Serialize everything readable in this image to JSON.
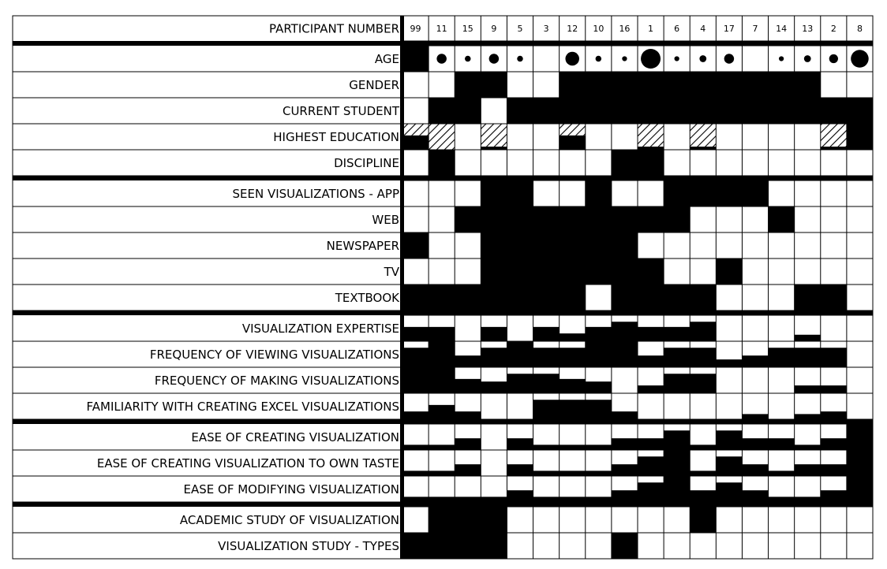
{
  "chart_data": {
    "type": "heatmap",
    "title": "",
    "participants": [
      "99",
      "11",
      "15",
      "9",
      "5",
      "3",
      "12",
      "10",
      "16",
      "1",
      "6",
      "4",
      "17",
      "7",
      "14",
      "13",
      "2",
      "8"
    ],
    "header_label": "PARTICIPANT NUMBER",
    "groups": [
      {
        "rows": [
          {
            "label": "AGE",
            "kind": "circle",
            "values": [
              -1,
              3,
              1,
              3,
              1,
              0,
              5,
              1,
              0.5,
              8,
              0.5,
              1.5,
              3,
              0,
              0.5,
              1.5,
              2.5,
              7
            ]
          },
          {
            "label": "GENDER",
            "kind": "binary",
            "values": [
              0,
              0,
              1,
              1,
              0,
              0,
              1,
              1,
              1,
              1,
              1,
              1,
              1,
              1,
              1,
              1,
              0,
              0
            ]
          },
          {
            "label": "CURRENT STUDENT",
            "kind": "binary",
            "values": [
              0,
              1,
              1,
              0,
              1,
              1,
              1,
              1,
              1,
              1,
              1,
              1,
              1,
              1,
              1,
              1,
              1,
              1
            ]
          },
          {
            "label": "HIGHEST EDUCATION",
            "kind": "education",
            "values": [
              "hatch-black",
              "hatch",
              "none",
              "hatch-thin",
              "none",
              "none",
              "hatch-black",
              "none",
              "none",
              "hatch-thin",
              "none",
              "hatch-thin",
              "none",
              "none",
              "none",
              "none",
              "hatch-thin",
              "black"
            ]
          },
          {
            "label": "DISCIPLINE",
            "kind": "binary",
            "values": [
              0,
              1,
              0,
              0,
              0,
              0,
              0,
              0,
              1,
              1,
              0,
              0,
              0,
              0,
              0,
              0,
              0,
              0
            ]
          }
        ]
      },
      {
        "rows": [
          {
            "label": "SEEN VISUALIZATIONS - APP",
            "kind": "binary",
            "values": [
              0,
              0,
              0,
              1,
              1,
              0,
              0,
              1,
              0,
              0,
              1,
              1,
              1,
              1,
              0,
              0,
              0,
              0
            ]
          },
          {
            "label": "WEB",
            "kind": "binary",
            "values": [
              0,
              0,
              1,
              1,
              1,
              1,
              1,
              1,
              1,
              1,
              1,
              0,
              0,
              0,
              1,
              0,
              0,
              0
            ]
          },
          {
            "label": "NEWSPAPER",
            "kind": "binary",
            "values": [
              1,
              0,
              0,
              1,
              1,
              1,
              1,
              1,
              1,
              0,
              0,
              0,
              0,
              0,
              0,
              0,
              0,
              0
            ]
          },
          {
            "label": "TV",
            "kind": "binary",
            "values": [
              0,
              0,
              0,
              1,
              1,
              1,
              1,
              1,
              1,
              1,
              0,
              0,
              1,
              0,
              0,
              0,
              0,
              0
            ]
          },
          {
            "label": "TEXTBOOK",
            "kind": "binary",
            "values": [
              1,
              1,
              1,
              1,
              1,
              1,
              1,
              0,
              1,
              1,
              1,
              1,
              0,
              0,
              0,
              1,
              1,
              0
            ]
          }
        ]
      },
      {
        "rows": [
          {
            "label": "VISUALIZATION EXPERTISE",
            "kind": "level",
            "values": [
              0.55,
              0.55,
              0.0,
              0.55,
              0.0,
              0.55,
              0.3,
              0.55,
              0.75,
              0.55,
              0.55,
              0.75,
              0.0,
              0.0,
              0.0,
              0.25,
              0.0,
              0.0
            ]
          },
          {
            "label": "FREQUENCY OF VIEWING VISUALIZATIONS",
            "kind": "level",
            "values": [
              0.75,
              1.0,
              0.45,
              0.75,
              1.0,
              0.75,
              0.75,
              1.0,
              1.0,
              0.45,
              0.75,
              0.75,
              0.3,
              0.45,
              0.75,
              0.75,
              0.75,
              0.0
            ]
          },
          {
            "label": "FREQUENCY OF MAKING VISUALIZATIONS",
            "kind": "level",
            "values": [
              1.0,
              1.0,
              0.55,
              0.45,
              0.75,
              0.75,
              0.55,
              0.45,
              0.0,
              0.3,
              0.75,
              0.75,
              0.0,
              0.0,
              0.0,
              0.3,
              0.3,
              0.0
            ]
          },
          {
            "label": "FAMILIARITY WITH CREATING EXCEL VISUALIZATIONS",
            "kind": "level",
            "values": [
              0.3,
              0.55,
              0.3,
              0.0,
              0.0,
              0.75,
              0.75,
              0.75,
              0.3,
              0.0,
              0.0,
              0.0,
              0.0,
              0.2,
              0.0,
              0.2,
              0.3,
              0.0
            ]
          }
        ]
      },
      {
        "rows": [
          {
            "label": "EASE OF CREATING VISUALIZATION",
            "kind": "level",
            "values": [
              0.2,
              0.2,
              0.45,
              0.0,
              0.45,
              0.2,
              0.2,
              0.2,
              0.45,
              0.45,
              0.75,
              0.2,
              0.75,
              0.45,
              0.45,
              0.2,
              0.45,
              1.0
            ]
          },
          {
            "label": "EASE OF CREATING VISUALIZATION TO OWN TASTE",
            "kind": "level",
            "values": [
              0.2,
              0.2,
              0.45,
              0.0,
              0.45,
              0.2,
              0.2,
              0.2,
              0.45,
              0.75,
              1.0,
              0.2,
              0.75,
              0.45,
              0.2,
              0.45,
              0.45,
              1.0
            ]
          },
          {
            "label": "EASE OF MODIFYING VISUALIZATION",
            "kind": "level",
            "values": [
              0.2,
              0.2,
              0.2,
              0.2,
              0.45,
              0.2,
              0.2,
              0.2,
              0.45,
              0.75,
              1.0,
              0.45,
              0.75,
              0.45,
              0.2,
              0.2,
              0.45,
              1.0
            ]
          }
        ]
      },
      {
        "rows": [
          {
            "label": "ACADEMIC STUDY OF VISUALIZATION",
            "kind": "binary",
            "values": [
              0,
              1,
              1,
              1,
              0,
              0,
              0,
              0,
              0,
              0,
              0,
              1,
              0,
              0,
              0,
              0,
              0,
              0
            ]
          },
          {
            "label": "VISUALIZATION STUDY - TYPES",
            "kind": "binary",
            "values": [
              1,
              1,
              1,
              1,
              0,
              0,
              0,
              0,
              1,
              0,
              0,
              0,
              0,
              0,
              0,
              0,
              0,
              0
            ]
          }
        ]
      }
    ]
  }
}
